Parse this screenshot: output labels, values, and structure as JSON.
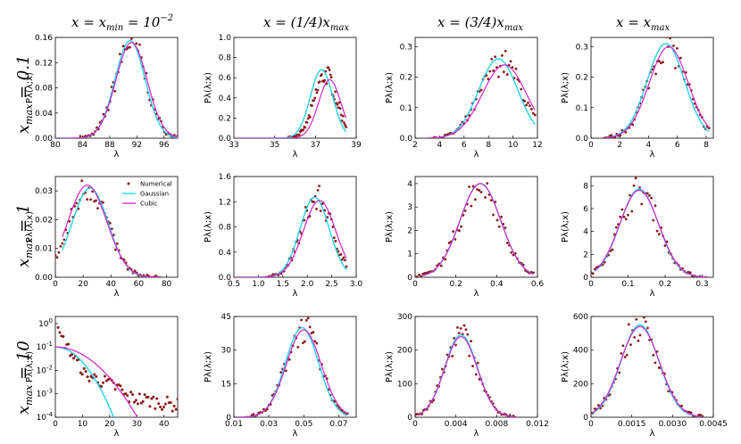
{
  "figure": {
    "column_titles": [
      "x = x_min = 10^-2",
      "x = (1/4)x_max",
      "x = (3/4)x_max",
      "x = x_max"
    ],
    "row_titles": [
      "x_max = 0.1",
      "x_max = 1",
      "x_max = 10"
    ],
    "legend": [
      "Numerical",
      "Gaussian",
      "Cubic"
    ]
  },
  "colors": {
    "numerical": "#8b1a1a",
    "gaussian": "#22d3e6",
    "cubic": "#d622c8"
  },
  "chart_data": [
    {
      "type": "scatter",
      "row": 0,
      "col": 0,
      "xlabel": "λ",
      "ylabel": "Pλ(λ;x)",
      "xlim": [
        80,
        98
      ],
      "ylim": [
        0,
        0.16
      ],
      "xticks": [
        "80",
        "84",
        "88",
        "92",
        "96"
      ],
      "yticks": [
        "0.00",
        "0.04",
        "0.08",
        "0.12",
        "0.16"
      ],
      "gauss": {
        "mu": 91,
        "sigma": 2.2,
        "amp": 0.155
      },
      "cubic": {
        "mu": 91.2,
        "sigma": 2.3,
        "amp": 0.152
      },
      "scatter_scale": 0.15
    },
    {
      "type": "scatter",
      "row": 0,
      "col": 1,
      "xlabel": "λ",
      "ylabel": "Pλ(λ;x)",
      "xlim": [
        33,
        39
      ],
      "ylim": [
        0,
        1.0
      ],
      "xticks": [
        "33",
        "35",
        "37",
        "39"
      ],
      "yticks": [
        "0.0",
        "0.2",
        "0.4",
        "0.6",
        "0.8",
        "1.0"
      ],
      "gauss": {
        "mu": 37.3,
        "sigma": 0.55,
        "amp": 0.68,
        "xmax": 38.5
      },
      "cubic": {
        "mu": 37.7,
        "sigma": 0.55,
        "amp": 0.58,
        "xmax": 38.5
      },
      "scatter_scale": 0.9
    },
    {
      "type": "scatter",
      "row": 0,
      "col": 2,
      "xlabel": "λ",
      "ylabel": "Pλ(λ;x)",
      "xlim": [
        2,
        12
      ],
      "ylim": [
        0,
        0.33
      ],
      "xticks": [
        "2",
        "4",
        "6",
        "8",
        "10",
        "12"
      ],
      "yticks": [
        "0.0",
        "0.1",
        "0.2",
        "0.3"
      ],
      "gauss": {
        "mu": 8.8,
        "sigma": 1.6,
        "amp": 0.26,
        "xmin": 3,
        "xmax": 11.8
      },
      "cubic": {
        "mu": 9.3,
        "sigma": 1.8,
        "amp": 0.24,
        "xmin": 3,
        "xmax": 11.8
      },
      "scatter_scale": 0.29
    },
    {
      "type": "scatter",
      "row": 0,
      "col": 3,
      "xlabel": "λ",
      "ylabel": "Pλ(λ;x)",
      "xlim": [
        0,
        8.5
      ],
      "ylim": [
        0,
        0.33
      ],
      "xticks": [
        "0",
        "2",
        "4",
        "6",
        "8"
      ],
      "yticks": [
        "0.0",
        "0.1",
        "0.2",
        "0.3"
      ],
      "gauss": {
        "mu": 5.2,
        "sigma": 1.3,
        "amp": 0.31,
        "xmin": 1,
        "xmax": 8.2
      },
      "cubic": {
        "mu": 5.4,
        "sigma": 1.35,
        "amp": 0.3,
        "xmin": 1,
        "xmax": 8.2
      },
      "scatter_scale": 0.3
    },
    {
      "type": "scatter",
      "row": 1,
      "col": 0,
      "xlabel": "λ",
      "ylabel": "Pλ(λ;x)",
      "xlim": [
        0,
        88
      ],
      "ylim": [
        0,
        0.035
      ],
      "xticks": [
        "0",
        "20",
        "40",
        "60",
        "80"
      ],
      "yticks": [
        "0.00",
        "0.01",
        "0.02",
        "0.03"
      ],
      "gauss": {
        "mu": 25,
        "sigma": 13,
        "amp": 0.031,
        "xmin": 5,
        "xmax": 75
      },
      "cubic": {
        "mu": 23,
        "sigma": 14,
        "amp": 0.032,
        "xmin": 5,
        "xmax": 75
      },
      "scatter_scale": 0.034,
      "has_legend": true
    },
    {
      "type": "scatter",
      "row": 1,
      "col": 1,
      "xlabel": "λ",
      "ylabel": "Pλ(λ;x)",
      "xlim": [
        0.5,
        3.0
      ],
      "ylim": [
        0,
        1.6
      ],
      "xticks": [
        "0.5",
        "1.0",
        "1.5",
        "2.0",
        "2.5",
        "3.0"
      ],
      "yticks": [
        "0.0",
        "0.4",
        "0.8",
        "1.2",
        "1.6"
      ],
      "gauss": {
        "mu": 2.15,
        "sigma": 0.3,
        "amp": 1.27,
        "xmax": 2.8
      },
      "cubic": {
        "mu": 2.25,
        "sigma": 0.33,
        "amp": 1.22,
        "xmax": 2.8
      },
      "scatter_scale": 1.45
    },
    {
      "type": "scatter",
      "row": 1,
      "col": 2,
      "xlabel": "λ",
      "ylabel": "Pλ(λ;x)",
      "xlim": [
        0,
        0.6
      ],
      "ylim": [
        0,
        4.3
      ],
      "xticks": [
        "0",
        "0.2",
        "0.4",
        "0.6"
      ],
      "yticks": [
        "0",
        "1",
        "2",
        "3",
        "4"
      ],
      "gauss": {
        "mu": 0.32,
        "sigma": 0.1,
        "amp": 4.0,
        "xmin": 0.03,
        "xmax": 0.58
      },
      "cubic": {
        "mu": 0.32,
        "sigma": 0.1,
        "amp": 4.0,
        "xmin": 0.03,
        "xmax": 0.58
      },
      "scatter_scale": 4.1
    },
    {
      "type": "scatter",
      "row": 1,
      "col": 3,
      "xlabel": "λ",
      "ylabel": "Pλ(λ;x)",
      "xlim": [
        0,
        0.33
      ],
      "ylim": [
        0,
        8.8
      ],
      "xticks": [
        "0",
        "0.1",
        "0.2",
        "0.3"
      ],
      "yticks": [
        "0",
        "2",
        "4",
        "6",
        "8"
      ],
      "gauss": {
        "mu": 0.13,
        "sigma": 0.052,
        "amp": 7.7,
        "xmin": 0.01,
        "xmax": 0.31
      },
      "cubic": {
        "mu": 0.13,
        "sigma": 0.053,
        "amp": 7.6,
        "xmin": 0.01,
        "xmax": 0.31
      },
      "scatter_scale": 8.0
    },
    {
      "type": "scatter",
      "row": 2,
      "col": 0,
      "xlabel": "λ",
      "ylabel": "Pλ(λ;x)",
      "xlim": [
        0,
        45
      ],
      "ylim": [
        -4,
        0.3
      ],
      "log_y": true,
      "xticks": [
        "0",
        "10",
        "20",
        "30",
        "40"
      ],
      "yticks": [
        "10^0",
        "10^-1",
        "10^-2",
        "10^-3",
        "10^-4"
      ],
      "gauss": {
        "a": -1.0,
        "b": 0.0065
      },
      "cubic": {
        "a": -1.0,
        "b": 0.0033
      }
    },
    {
      "type": "scatter",
      "row": 2,
      "col": 1,
      "xlabel": "λ",
      "ylabel": "Pλ(λ;x)",
      "xlim": [
        0.01,
        0.08
      ],
      "ylim": [
        0,
        45
      ],
      "xticks": [
        "0.01",
        "0.03",
        "0.05",
        "0.07"
      ],
      "yticks": [
        "0",
        "15",
        "30",
        "45"
      ],
      "gauss": {
        "mu": 0.049,
        "sigma": 0.0095,
        "amp": 40,
        "xmin": 0.012,
        "xmax": 0.075
      },
      "cubic": {
        "mu": 0.05,
        "sigma": 0.01,
        "amp": 39,
        "xmin": 0.012,
        "xmax": 0.075
      },
      "scatter_scale": 40
    },
    {
      "type": "scatter",
      "row": 2,
      "col": 2,
      "xlabel": "λ",
      "ylabel": "Pλ(λ;x)",
      "xlim": [
        0,
        0.012
      ],
      "ylim": [
        0,
        300
      ],
      "xticks": [
        "0",
        "0.004",
        "0.008",
        "0.012"
      ],
      "yticks": [
        "0",
        "100",
        "200",
        "300"
      ],
      "gauss": {
        "mu": 0.0045,
        "sigma": 0.0016,
        "amp": 245,
        "xmin": 0.0003,
        "xmax": 0.0098
      },
      "cubic": {
        "mu": 0.0045,
        "sigma": 0.0016,
        "amp": 240,
        "xmin": 0.0003,
        "xmax": 0.0098
      },
      "scatter_scale": 240
    },
    {
      "type": "scatter",
      "row": 2,
      "col": 3,
      "xlabel": "λ",
      "ylabel": "Pλ(λ;x)",
      "xlim": [
        0,
        0.0045
      ],
      "ylim": [
        0,
        600
      ],
      "xticks": [
        "0",
        "0.0015",
        "0.0030",
        "0.0045"
      ],
      "yticks": [
        "0",
        "200",
        "400",
        "600"
      ],
      "gauss": {
        "mu": 0.0018,
        "sigma": 0.0007,
        "amp": 550,
        "xmin": 5e-05,
        "xmax": 0.0041
      },
      "cubic": {
        "mu": 0.0018,
        "sigma": 0.00072,
        "amp": 540,
        "xmin": 5e-05,
        "xmax": 0.0041
      },
      "scatter_scale": 540
    }
  ]
}
